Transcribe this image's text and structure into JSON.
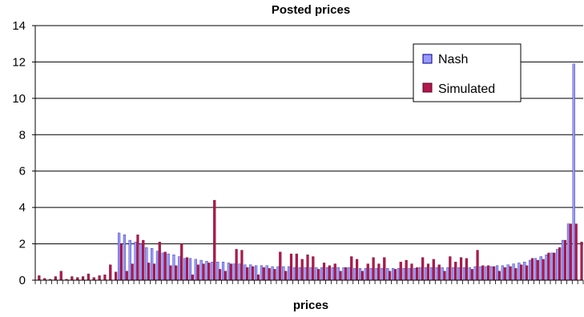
{
  "chart_data": {
    "type": "bar",
    "title": "Posted prices",
    "xlabel": "prices",
    "ylabel": "",
    "ylim": [
      0,
      14
    ],
    "yticks": [
      0,
      2,
      4,
      6,
      8,
      10,
      12,
      14
    ],
    "grid": true,
    "legend_position": "top-right",
    "x": [
      1,
      2,
      3,
      4,
      5,
      6,
      7,
      8,
      9,
      10,
      11,
      12,
      13,
      14,
      15,
      16,
      17,
      18,
      19,
      20,
      21,
      22,
      23,
      24,
      25,
      26,
      27,
      28,
      29,
      30,
      31,
      32,
      33,
      34,
      35,
      36,
      37,
      38,
      39,
      40,
      41,
      42,
      43,
      44,
      45,
      46,
      47,
      48,
      49,
      50,
      51,
      52,
      53,
      54,
      55,
      56,
      57,
      58,
      59,
      60,
      61,
      62,
      63,
      64,
      65,
      66,
      67,
      68,
      69,
      70,
      71,
      72,
      73,
      74,
      75,
      76,
      77,
      78,
      79,
      80,
      81,
      82,
      83,
      84,
      85,
      86,
      87,
      88,
      89,
      90,
      91,
      92,
      93,
      94,
      95,
      96,
      97,
      98,
      99,
      100
    ],
    "series": [
      {
        "name": "Nash",
        "color": "#9999ff",
        "values": [
          0,
          0,
          0,
          0,
          0,
          0,
          0,
          0,
          0,
          0,
          0,
          0,
          0,
          0,
          0,
          2.6,
          2.5,
          2.2,
          2.1,
          2.0,
          1.8,
          1.75,
          1.6,
          1.5,
          1.45,
          1.4,
          1.3,
          1.2,
          1.2,
          1.15,
          1.1,
          1.05,
          1.0,
          1.0,
          1.0,
          0.95,
          0.9,
          0.9,
          0.85,
          0.85,
          0.8,
          0.8,
          0.8,
          0.75,
          0.75,
          0.75,
          0.75,
          0.7,
          0.7,
          0.7,
          0.7,
          0.7,
          0.7,
          0.7,
          0.7,
          0.7,
          0.7,
          0.7,
          0.65,
          0.65,
          0.65,
          0.65,
          0.65,
          0.65,
          0.65,
          0.65,
          0.65,
          0.65,
          0.65,
          0.65,
          0.7,
          0.7,
          0.7,
          0.7,
          0.7,
          0.7,
          0.7,
          0.7,
          0.7,
          0.7,
          0.75,
          0.75,
          0.75,
          0.75,
          0.8,
          0.8,
          0.85,
          0.9,
          0.95,
          1.0,
          1.1,
          1.2,
          1.3,
          1.4,
          1.5,
          1.7,
          2.2,
          3.1,
          11.9,
          0
        ]
      },
      {
        "name": "Simulated",
        "color": "#b0184e",
        "values": [
          0.25,
          0.1,
          0.05,
          0.2,
          0.5,
          0.05,
          0.2,
          0.15,
          0.2,
          0.35,
          0.15,
          0.25,
          0.3,
          0.85,
          0.45,
          2.0,
          0.5,
          0.9,
          2.5,
          2.2,
          0.95,
          0.9,
          2.1,
          1.55,
          0.8,
          0.8,
          2.0,
          1.25,
          0.3,
          0.85,
          0.9,
          0.95,
          4.4,
          0.6,
          0.5,
          0.9,
          1.7,
          1.65,
          0.7,
          0.75,
          0.3,
          0.7,
          0.65,
          0.6,
          1.55,
          0.5,
          1.45,
          1.45,
          1.15,
          1.4,
          1.3,
          0.6,
          0.95,
          0.8,
          0.9,
          0.5,
          0.7,
          1.3,
          1.15,
          0.5,
          0.9,
          1.25,
          0.9,
          1.25,
          0.5,
          0.6,
          1.0,
          1.1,
          0.9,
          0.7,
          1.25,
          0.9,
          1.15,
          0.85,
          0.5,
          1.3,
          1.0,
          1.25,
          1.2,
          0.6,
          1.65,
          0.8,
          0.8,
          0.75,
          0.5,
          0.7,
          0.75,
          0.65,
          0.85,
          0.8,
          1.2,
          1.1,
          1.15,
          1.5,
          1.5,
          1.8,
          2.2,
          3.1,
          3.1,
          2.1
        ]
      }
    ]
  }
}
